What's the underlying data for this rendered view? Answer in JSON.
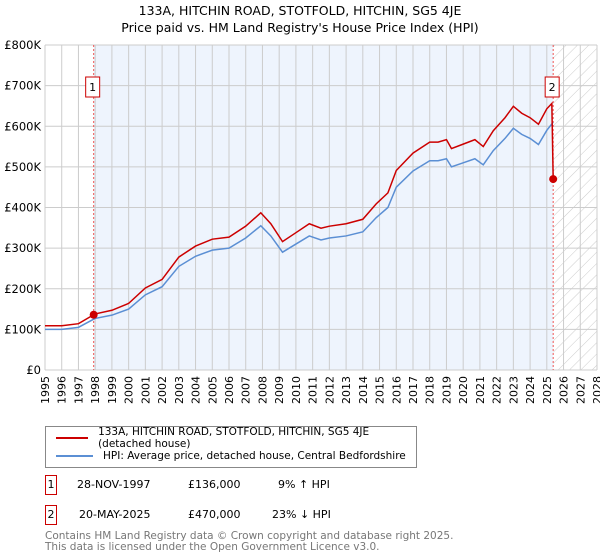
{
  "chart_data": {
    "type": "line",
    "title": "133A, HITCHIN ROAD, STOTFOLD, HITCHIN, SG5 4JE",
    "subtitle": "Price paid vs. HM Land Registry's House Price Index (HPI)",
    "xlim": [
      1995,
      2028
    ],
    "ylim": [
      0,
      800000
    ],
    "y_ticks": [
      0,
      100000,
      200000,
      300000,
      400000,
      500000,
      600000,
      700000,
      800000
    ],
    "y_tick_labels": [
      "£0",
      "£100K",
      "£200K",
      "£300K",
      "£400K",
      "£500K",
      "£600K",
      "£700K",
      "£800K"
    ],
    "x_ticks": [
      1995,
      1996,
      1997,
      1998,
      1999,
      2000,
      2001,
      2002,
      2003,
      2004,
      2005,
      2006,
      2007,
      2008,
      2009,
      2010,
      2011,
      2012,
      2013,
      2014,
      2015,
      2016,
      2017,
      2018,
      2019,
      2020,
      2021,
      2022,
      2023,
      2024,
      2025,
      2026,
      2027,
      2028
    ],
    "shaded_range": [
      1997.91,
      2025.38
    ],
    "hatched_from": 2025.38,
    "grid": true,
    "series": [
      {
        "name": "133A, HITCHIN ROAD, STOTFOLD, HITCHIN, SG5 4JE (detached house)",
        "color": "#cc0000",
        "x": [
          1995,
          1996,
          1997,
          1997.91,
          1998,
          1999,
          2000,
          2001,
          2002,
          2003,
          2004,
          2005,
          2006,
          2007,
          2007.9,
          2008.5,
          2009.2,
          2010,
          2010.8,
          2011.5,
          2012,
          2013,
          2014,
          2014.8,
          2015.5,
          2016,
          2017,
          2018,
          2018.5,
          2019,
          2019.3,
          2020,
          2020.7,
          2021.2,
          2021.8,
          2022.5,
          2023,
          2023.5,
          2024,
          2024.5,
          2025,
          2025.3,
          2025.38
        ],
        "y": [
          109000,
          109000,
          114000,
          136000,
          138000,
          147000,
          164000,
          202000,
          223000,
          278000,
          305000,
          322000,
          327000,
          354000,
          387000,
          360000,
          316000,
          338000,
          360000,
          349000,
          354000,
          360000,
          371000,
          409000,
          436000,
          491000,
          534000,
          561000,
          561000,
          567000,
          545000,
          556000,
          567000,
          550000,
          589000,
          621000,
          649000,
          632000,
          621000,
          605000,
          643000,
          656000,
          470000
        ]
      },
      {
        "name": "HPI: Average price, detached house, Central Bedfordshire",
        "color": "#5b8fd4",
        "x": [
          1995,
          1996,
          1997,
          1997.91,
          1998,
          1999,
          2000,
          2001,
          2002,
          2003,
          2004,
          2005,
          2006,
          2007,
          2007.9,
          2008.5,
          2009.2,
          2010,
          2010.8,
          2011.5,
          2012,
          2013,
          2014,
          2014.8,
          2015.5,
          2016,
          2017,
          2018,
          2018.5,
          2019,
          2019.3,
          2020,
          2020.7,
          2021.2,
          2021.8,
          2022.5,
          2023,
          2023.5,
          2024,
          2024.5,
          2025,
          2025.38
        ],
        "y": [
          100000,
          100000,
          105000,
          125000,
          127000,
          135000,
          150000,
          185000,
          205000,
          255000,
          280000,
          295000,
          300000,
          325000,
          355000,
          330000,
          290000,
          310000,
          330000,
          320000,
          325000,
          330000,
          340000,
          375000,
          400000,
          450000,
          490000,
          515000,
          515000,
          520000,
          500000,
          510000,
          520000,
          505000,
          540000,
          570000,
          595000,
          580000,
          570000,
          555000,
          590000,
          610000
        ]
      }
    ],
    "sales": [
      {
        "label": "1",
        "x": 1997.91,
        "y": 136000,
        "date": "28-NOV-1997",
        "price": "£136,000",
        "hpi": "9% ↑ HPI"
      },
      {
        "label": "2",
        "x": 2025.38,
        "y": 470000,
        "date": "20-MAY-2025",
        "price": "£470,000",
        "hpi": "23% ↓ HPI"
      }
    ]
  },
  "footer": {
    "line1": "Contains HM Land Registry data © Crown copyright and database right 2025.",
    "line2": "This data is licensed under the Open Government Licence v3.0."
  }
}
